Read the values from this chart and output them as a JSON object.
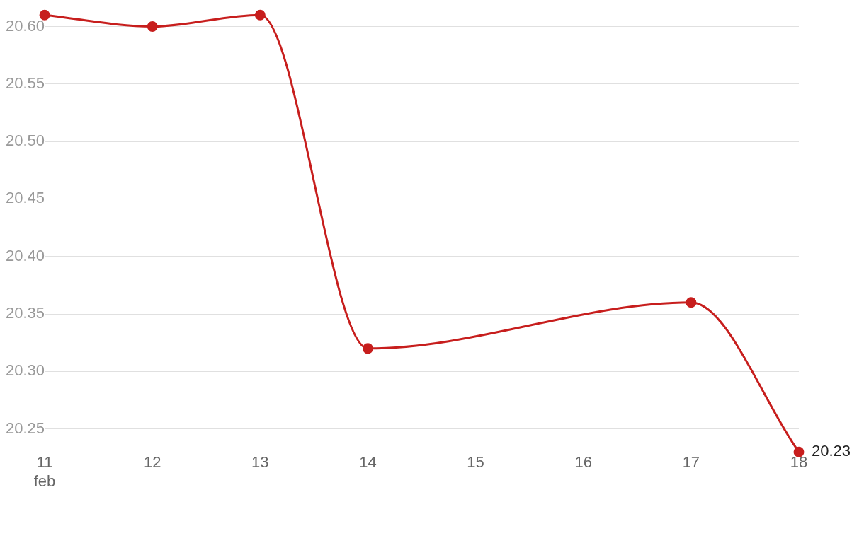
{
  "chart_data": {
    "type": "line",
    "x": [
      11,
      12,
      13,
      14,
      17,
      18
    ],
    "series": [
      {
        "color": "#c71e1d",
        "values": [
          20.61,
          20.6,
          20.61,
          20.32,
          20.36,
          20.23
        ],
        "value_labels": [
          null,
          null,
          null,
          null,
          null,
          "20.23"
        ]
      }
    ],
    "xlim": [
      11,
      18
    ],
    "xticks": [
      {
        "value": 11,
        "label": "11 feb"
      },
      12,
      13,
      14,
      15,
      16,
      17,
      18
    ],
    "yticks": [
      {
        "value": 20.25,
        "label": "20.25"
      },
      {
        "value": 20.3,
        "label": "20.30"
      },
      {
        "value": 20.35,
        "label": "20.35"
      },
      {
        "value": 20.4,
        "label": "20.40"
      },
      {
        "value": 20.45,
        "label": "20.45"
      },
      {
        "value": 20.5,
        "label": "20.50"
      },
      {
        "value": 20.55,
        "label": "20.55"
      },
      {
        "value": 20.6,
        "label": "20.60"
      }
    ],
    "ylim": [
      20.23,
      20.61
    ],
    "grid": "y",
    "legend": false,
    "marker": "circle",
    "line_style": "solid"
  }
}
